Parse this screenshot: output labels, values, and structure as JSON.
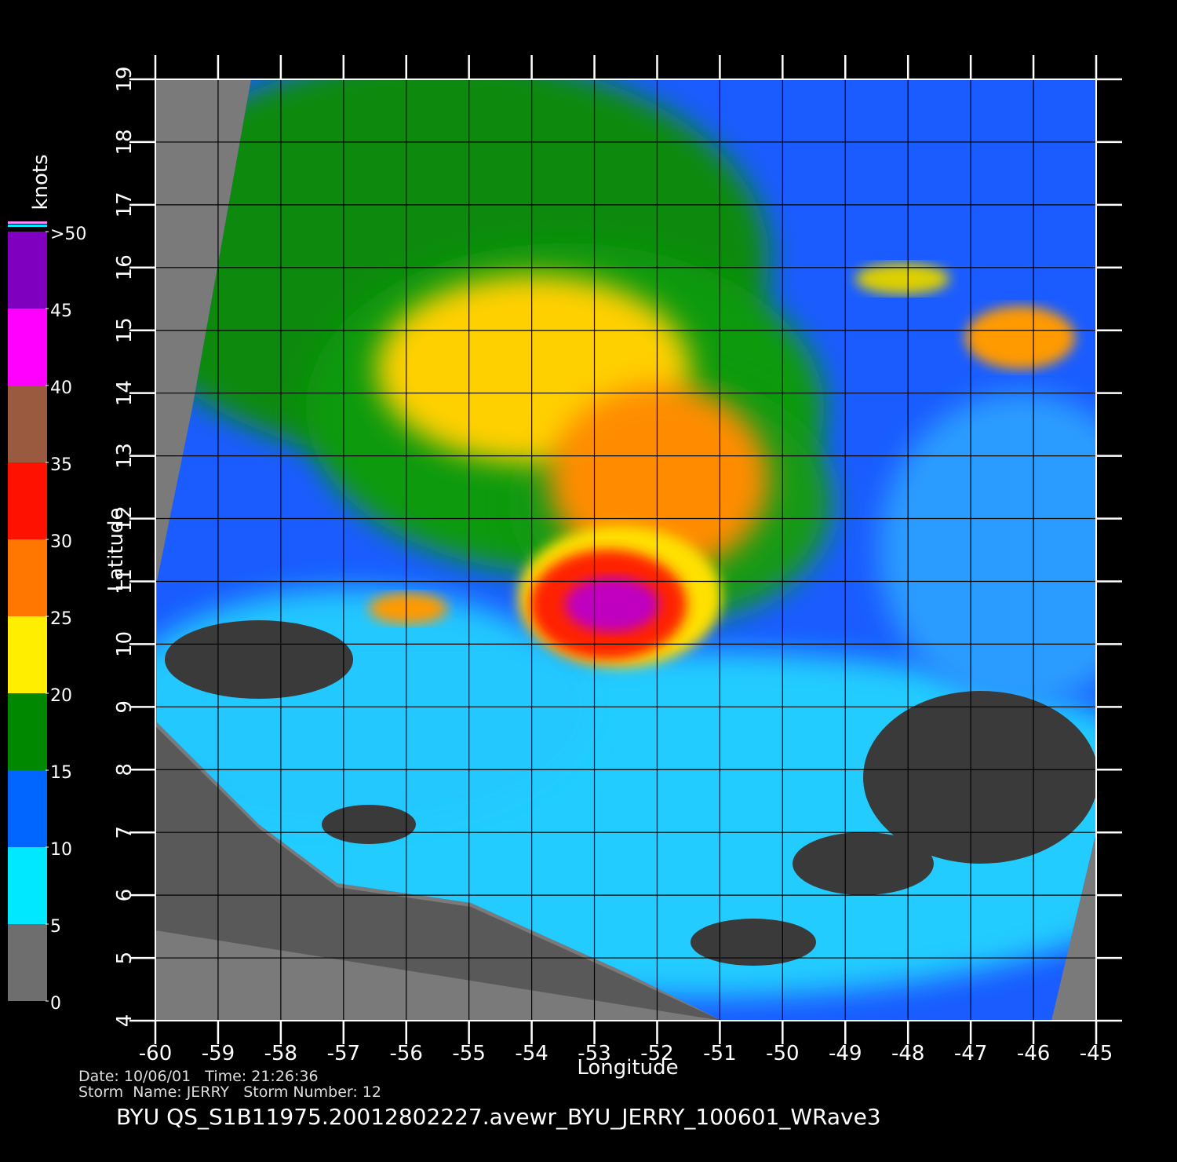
{
  "map": {
    "xlabel": "Longitude",
    "ylabel": "Latitude",
    "xlim": [
      -60,
      -45
    ],
    "ylim": [
      4,
      19
    ],
    "xticks": [
      -60,
      -59,
      -58,
      -57,
      -56,
      -55,
      -54,
      -53,
      -52,
      -51,
      -50,
      -49,
      -48,
      -47,
      -46,
      -45
    ],
    "yticks": [
      4,
      5,
      6,
      7,
      8,
      9,
      10,
      11,
      12,
      13,
      14,
      15,
      16,
      17,
      18,
      19
    ],
    "grid": true
  },
  "colorbar": {
    "label": "knots",
    "lim": [
      0,
      50
    ],
    "ticks": [
      0,
      5,
      10,
      15,
      20,
      25,
      30,
      35,
      40,
      45,
      {
        "value": 50,
        "label": ">50"
      }
    ],
    "colors": [
      "#6e6e6e",
      "#00e8ff",
      "#0066ff",
      "#008800",
      "#ffee00",
      "#ff7700",
      "#ff1100",
      "#9a5a40",
      "#ff00ff",
      "#8000c0"
    ]
  },
  "footer": {
    "date_line": "Date: 10/06/01   Time: 21:26:36",
    "storm_line": "Storm  Name: JERRY   Storm Number: 12",
    "title": "BYU  QS_S1B11975.20012802227.avewr_BYU_JERRY_100601_WRave3"
  }
}
